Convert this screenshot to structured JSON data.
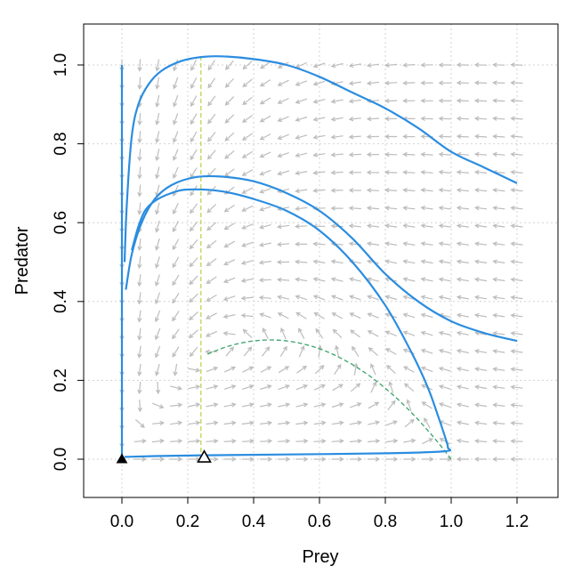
{
  "chart_data": {
    "type": "line",
    "title": "",
    "xlabel": "Prey",
    "ylabel": "Predator",
    "xlim": [
      -0.12,
      1.32
    ],
    "ylim": [
      -0.09,
      1.1
    ],
    "x_ticks": [
      "0.0",
      "0.2",
      "0.4",
      "0.6",
      "0.8",
      "1.0",
      "1.2"
    ],
    "y_ticks": [
      "0.0",
      "0.2",
      "0.4",
      "0.6",
      "0.8",
      "1.0"
    ],
    "grid": true,
    "vector_field": {
      "model": "dx = x(1-x) - a*x*y/(x+b); dy = s*y*(1 - y/x)",
      "a": 1.0,
      "b": 0.1,
      "s": 0.25,
      "x_range": [
        0,
        1.2
      ],
      "y_range": [
        0,
        1.0
      ],
      "n": 23,
      "color": "#bdbdbd"
    },
    "trajectories": {
      "color": "#2b8de0",
      "curves": [
        [
          [
            1.2,
            0.7
          ],
          [
            1.1,
            0.74
          ],
          [
            1.0,
            0.78
          ],
          [
            0.9,
            0.84
          ],
          [
            0.8,
            0.89
          ],
          [
            0.7,
            0.93
          ],
          [
            0.6,
            0.97
          ],
          [
            0.5,
            1.0
          ],
          [
            0.4,
            1.015
          ],
          [
            0.3,
            1.022
          ],
          [
            0.24,
            1.02
          ],
          [
            0.18,
            1.01
          ],
          [
            0.12,
            0.985
          ],
          [
            0.08,
            0.95
          ],
          [
            0.05,
            0.9
          ],
          [
            0.03,
            0.82
          ],
          [
            0.015,
            0.65
          ],
          [
            0.008,
            0.5
          ]
        ],
        [
          [
            1.2,
            0.3
          ],
          [
            1.1,
            0.32
          ],
          [
            1.0,
            0.35
          ],
          [
            0.9,
            0.4
          ],
          [
            0.8,
            0.47
          ],
          [
            0.7,
            0.56
          ],
          [
            0.6,
            0.63
          ],
          [
            0.5,
            0.675
          ],
          [
            0.4,
            0.705
          ],
          [
            0.3,
            0.717
          ],
          [
            0.22,
            0.715
          ],
          [
            0.15,
            0.695
          ],
          [
            0.1,
            0.66
          ],
          [
            0.06,
            0.6
          ],
          [
            0.03,
            0.52
          ],
          [
            0.012,
            0.43
          ]
        ],
        [
          [
            0.03,
            0.53
          ],
          [
            0.05,
            0.59
          ],
          [
            0.07,
            0.63
          ],
          [
            0.1,
            0.655
          ],
          [
            0.15,
            0.675
          ],
          [
            0.2,
            0.684
          ],
          [
            0.3,
            0.68
          ],
          [
            0.4,
            0.66
          ],
          [
            0.5,
            0.63
          ],
          [
            0.6,
            0.58
          ],
          [
            0.7,
            0.5
          ],
          [
            0.8,
            0.39
          ],
          [
            0.88,
            0.27
          ],
          [
            0.93,
            0.18
          ],
          [
            0.96,
            0.11
          ],
          [
            0.98,
            0.06
          ],
          [
            0.99,
            0.03
          ],
          [
            0.98,
            0.02
          ],
          [
            0.8,
            0.015
          ],
          [
            0.5,
            0.012
          ],
          [
            0.25,
            0.01
          ],
          [
            0.1,
            0.008
          ],
          [
            0.02,
            0.006
          ],
          [
            0.008,
            0.006
          ]
        ],
        [
          [
            0.0,
            1.0
          ],
          [
            0.0,
            0.0
          ]
        ]
      ]
    },
    "nullclines": [
      {
        "style": "dashed",
        "color": "#b5d94a",
        "x": 0.24,
        "y_from": 0.0,
        "y_to": 1.02
      },
      {
        "style": "dashed",
        "color": "#3aa36a",
        "curve": "y = (1-x)(x+0.1)",
        "x_from": 0.26,
        "x_to": 1.0
      }
    ],
    "points": [
      {
        "x": 0.0,
        "y": 0.0,
        "marker": "filled-triangle",
        "color": "#000000"
      },
      {
        "x": 0.25,
        "y": 0.005,
        "marker": "open-triangle",
        "color": "#000000"
      }
    ]
  }
}
